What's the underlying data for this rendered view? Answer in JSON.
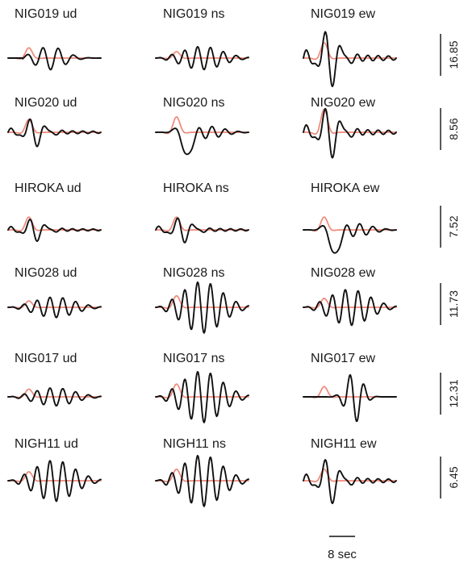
{
  "figure": {
    "colors": {
      "observed": "#111111",
      "synthetic": "#f08878",
      "text": "#1a1a1a",
      "background": "#ffffff"
    },
    "rows": [
      {
        "station": "NIG019",
        "scale": "16.85",
        "panels": [
          {
            "label": "NIG019 ud",
            "obs_amp": 0.45,
            "syn_amp": 0.4,
            "obs_shape": "onset-mid",
            "syn_shape": "pulse"
          },
          {
            "label": "NIG019 ns",
            "obs_amp": 0.45,
            "syn_amp": 0.25,
            "obs_shape": "wavetrain",
            "syn_shape": "pulse"
          },
          {
            "label": "NIG019 ew",
            "obs_amp": 1.0,
            "syn_amp": 0.6,
            "obs_shape": "early-burst",
            "syn_shape": "pulse"
          }
        ]
      },
      {
        "station": "NIG020",
        "scale": "8.56",
        "panels": [
          {
            "label": "NIG020 ud",
            "obs_amp": 0.5,
            "syn_amp": 0.5,
            "obs_shape": "early-burst",
            "syn_shape": "pulse"
          },
          {
            "label": "NIG020 ns",
            "obs_amp": 0.95,
            "syn_amp": 0.6,
            "obs_shape": "big-dip",
            "syn_shape": "pulse"
          },
          {
            "label": "NIG020 ew",
            "obs_amp": 0.9,
            "syn_amp": 0.9,
            "obs_shape": "early-burst",
            "syn_shape": "pulse"
          }
        ]
      },
      {
        "station": "HIROKA",
        "scale": "7.52",
        "panels": [
          {
            "label": "HIROKA ud",
            "obs_amp": 0.4,
            "syn_amp": 0.5,
            "obs_shape": "early-burst",
            "syn_shape": "pulse"
          },
          {
            "label": "HIROKA ns",
            "obs_amp": 0.45,
            "syn_amp": 0.5,
            "obs_shape": "early-burst",
            "syn_shape": "pulse"
          },
          {
            "label": "HIROKA ew",
            "obs_amp": 1.0,
            "syn_amp": 0.5,
            "obs_shape": "big-dip",
            "syn_shape": "pulse"
          }
        ]
      },
      {
        "station": "NIG028",
        "scale": "11.73",
        "panels": [
          {
            "label": "NIG028 ud",
            "obs_amp": 0.4,
            "syn_amp": 0.25,
            "obs_shape": "wavetrain",
            "syn_shape": "pulse"
          },
          {
            "label": "NIG028 ns",
            "obs_amp": 1.0,
            "syn_amp": 0.45,
            "obs_shape": "wavetrain",
            "syn_shape": "pulse"
          },
          {
            "label": "NIG028 ew",
            "obs_amp": 0.7,
            "syn_amp": 0.35,
            "obs_shape": "wavetrain",
            "syn_shape": "pulse"
          }
        ]
      },
      {
        "station": "NIG017",
        "scale": "12.31",
        "panels": [
          {
            "label": "NIG017 ud",
            "obs_amp": 0.35,
            "syn_amp": 0.3,
            "obs_shape": "wavetrain",
            "syn_shape": "pulse"
          },
          {
            "label": "NIG017 ns",
            "obs_amp": 1.0,
            "syn_amp": 0.5,
            "obs_shape": "wavetrain",
            "syn_shape": "pulse"
          },
          {
            "label": "NIG017 ew",
            "obs_amp": 1.0,
            "syn_amp": 0.4,
            "obs_shape": "late-peak",
            "syn_shape": "pulse"
          }
        ]
      },
      {
        "station": "NIGH11",
        "scale": "6.45",
        "panels": [
          {
            "label": "NIGH11 ud",
            "obs_amp": 0.8,
            "syn_amp": 0.35,
            "obs_shape": "wavetrain",
            "syn_shape": "pulse"
          },
          {
            "label": "NIGH11 ns",
            "obs_amp": 1.0,
            "syn_amp": 0.45,
            "obs_shape": "wavetrain",
            "syn_shape": "pulse"
          },
          {
            "label": "NIGH11 ew",
            "obs_amp": 0.8,
            "syn_amp": 0.45,
            "obs_shape": "early-burst",
            "syn_shape": "pulse"
          }
        ]
      }
    ],
    "time_scale": {
      "label": "8 sec",
      "seconds": 8
    }
  }
}
